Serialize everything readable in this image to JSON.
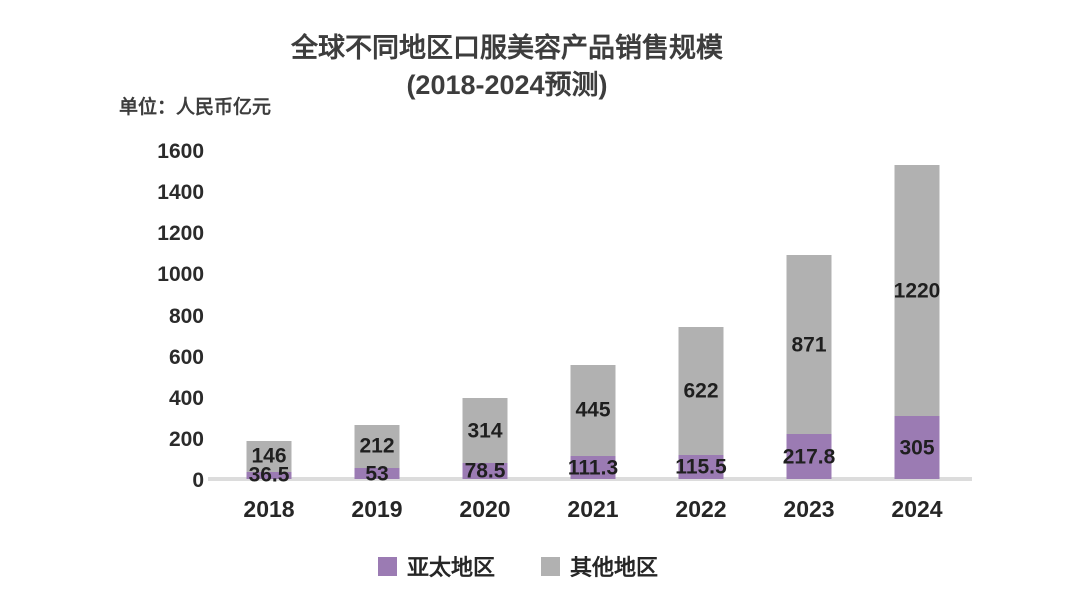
{
  "title": {
    "line1": "全球不同地区口服美容产品销售规模",
    "line2": "(2018-2024预测)"
  },
  "unit_label": "单位：人民币亿元",
  "chart_data": {
    "type": "bar",
    "stacked": true,
    "title": "全球不同地区口服美容产品销售规模 (2018-2024预测)",
    "unit": "单位：人民币亿元",
    "categories": [
      "2018",
      "2019",
      "2020",
      "2021",
      "2022",
      "2023",
      "2024"
    ],
    "series": [
      {
        "name": "亚太地区",
        "color": "#9b7bb3",
        "values": [
          36.5,
          53,
          78.5,
          111.3,
          115.5,
          217.8,
          305
        ]
      },
      {
        "name": "其他地区",
        "color": "#b1b1b1",
        "values": [
          146,
          212,
          314,
          445,
          622,
          871,
          1220
        ]
      }
    ],
    "totals": [
      182.5,
      265,
      392.5,
      556.3,
      737.5,
      1088.8,
      1525
    ],
    "ylim": [
      0,
      1600
    ],
    "yticks": [
      0,
      200,
      400,
      600,
      800,
      1000,
      1200,
      1400,
      1600
    ],
    "grid": false,
    "legend_position": "bottom",
    "data_labels": "inside-center"
  },
  "colors": {
    "axis_line": "#dcdcdc",
    "title_text": "#3d3d3d",
    "tick_text": "#2b2b2b",
    "label_text": "#1f1f1f",
    "background": "#ffffff"
  }
}
